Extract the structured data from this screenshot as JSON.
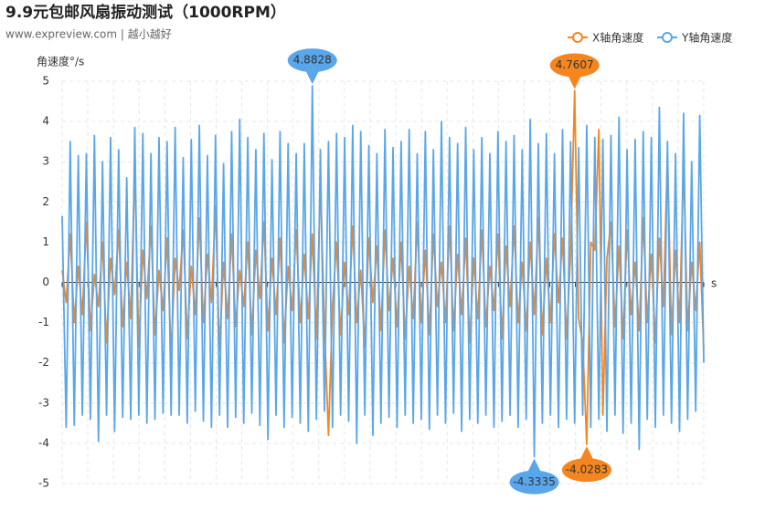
{
  "chart_data": {
    "type": "line",
    "title": "9.9元包邮风扇振动测试（1000RPM）",
    "subtitle": "www.expreview.com | 越小越好",
    "y_label": "角速度°/s",
    "x_label": "s",
    "ylim": [
      -5,
      5
    ],
    "yticks": [
      -5,
      -4,
      -3,
      -2,
      -1,
      0,
      1,
      2,
      3,
      4,
      5
    ],
    "grid": true,
    "legend": "top-right",
    "mark_max_min": true,
    "series": [
      {
        "name": "X轴角速度",
        "color": "#f5861f",
        "values": [
          0.3,
          -0.5,
          1.2,
          -1.0,
          0.4,
          -0.8,
          1.5,
          -1.2,
          0.2,
          -0.6,
          1.0,
          -1.5,
          0.6,
          -0.3,
          1.3,
          -1.1,
          0.5,
          -0.9,
          2.9,
          -1.6,
          0.8,
          -0.4,
          1.4,
          -1.3,
          0.3,
          -0.7,
          1.1,
          -1.8,
          0.6,
          -0.2,
          1.3,
          -1.4,
          0.4,
          -0.8,
          1.6,
          -1.0,
          0.7,
          -0.5,
          1.9,
          -1.7,
          0.5,
          -0.9,
          1.2,
          -1.1,
          0.3,
          -0.6,
          1.0,
          -1.3,
          0.8,
          -0.4,
          1.5,
          -1.2,
          0.6,
          -0.8,
          1.1,
          -1.5,
          0.4,
          -0.7,
          1.3,
          -1.0,
          0.7,
          -0.9,
          1.2,
          -1.4,
          2.55,
          -1.1,
          -3.8,
          -0.6,
          1.0,
          -1.3,
          0.5,
          -0.8,
          1.4,
          -1.0,
          0.3,
          -1.6,
          1.1,
          -0.5,
          0.9,
          -1.2,
          1.3,
          -0.7,
          0.6,
          -1.1,
          1.0,
          -1.4,
          0.4,
          -0.9,
          1.5,
          -1.0,
          0.8,
          -1.3,
          1.2,
          -0.6,
          0.5,
          -1.0,
          1.4,
          -1.2,
          0.7,
          -0.8,
          1.1,
          -1.5,
          0.6,
          -0.9,
          1.3,
          -1.1,
          0.4,
          -0.7,
          1.2,
          -1.4,
          0.9,
          -0.6,
          1.4,
          -1.0,
          0.5,
          -1.2,
          1.0,
          -0.8,
          1.6,
          -1.3,
          0.6,
          -1.0,
          1.2,
          -0.5,
          1.1,
          -1.4,
          0.7,
          4.7607,
          -0.9,
          -1.5,
          -4.0283,
          1.0,
          0.8,
          3.8,
          -3.3,
          0.6,
          1.5,
          -1.1,
          0.9,
          -1.4,
          1.3,
          -0.8,
          0.5,
          -1.2,
          1.6,
          -1.0,
          0.7,
          -1.5,
          1.1,
          -0.6,
          3.2,
          -1.3,
          0.8,
          -1.0,
          3.0,
          -1.2,
          0.5,
          -0.7,
          1.0,
          -1.7
        ]
      },
      {
        "name": "Y轴角速度",
        "color": "#5aa6ea",
        "values": [
          1.65,
          -3.6,
          3.5,
          -3.55,
          3.15,
          -3.3,
          3.2,
          -3.4,
          3.65,
          -3.95,
          3.0,
          -3.3,
          3.6,
          -3.7,
          3.3,
          -3.35,
          2.6,
          -3.4,
          3.85,
          -3.3,
          3.7,
          -3.5,
          3.2,
          -3.4,
          3.6,
          -3.25,
          3.5,
          -3.3,
          3.85,
          -3.3,
          3.1,
          -3.5,
          3.55,
          -3.2,
          3.9,
          -3.45,
          3.15,
          -3.6,
          3.65,
          -3.3,
          2.95,
          -3.6,
          3.75,
          -3.35,
          4.05,
          -3.5,
          3.6,
          -3.25,
          3.3,
          -3.55,
          3.7,
          -3.9,
          3.05,
          -3.3,
          3.75,
          -3.6,
          3.45,
          -3.35,
          3.2,
          -3.5,
          3.45,
          -3.7,
          4.8828,
          -3.4,
          3.3,
          -3.2,
          3.5,
          -3.6,
          3.7,
          -3.3,
          3.6,
          -3.45,
          3.9,
          -4.0,
          3.75,
          -3.3,
          3.4,
          -3.8,
          3.2,
          -3.5,
          3.8,
          -3.35,
          3.35,
          -3.6,
          3.5,
          -3.3,
          3.8,
          -3.5,
          3.2,
          -3.4,
          3.75,
          -3.65,
          3.3,
          -3.3,
          4.0,
          -3.5,
          3.6,
          -3.25,
          3.45,
          -3.7,
          3.85,
          -3.4,
          3.3,
          -3.5,
          3.6,
          -3.3,
          3.2,
          -3.6,
          3.75,
          -3.45,
          3.5,
          -3.3,
          3.65,
          -3.6,
          3.3,
          -3.4,
          4.05,
          -4.3335,
          3.45,
          -3.5,
          3.7,
          -3.3,
          3.2,
          -3.6,
          3.8,
          -3.4,
          3.5,
          -3.5,
          3.35,
          -3.3,
          3.9,
          -3.6,
          3.6,
          -3.4,
          3.55,
          -3.7,
          3.65,
          -3.3,
          4.1,
          -3.75,
          3.3,
          -3.5,
          3.55,
          -4.15,
          3.75,
          -3.4,
          3.6,
          -3.6,
          4.35,
          -3.3,
          3.5,
          -3.5,
          3.2,
          -3.7,
          4.2,
          -3.4,
          3.0,
          -3.2,
          4.15,
          -2.0
        ]
      }
    ]
  }
}
